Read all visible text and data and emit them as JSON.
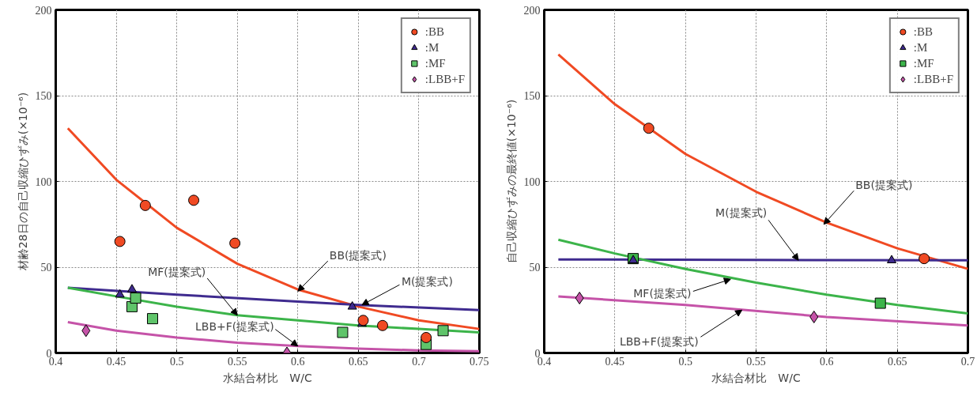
{
  "chart_data": [
    {
      "type": "scatter",
      "xlabel": "水結合材比　W/C",
      "ylabel": "材齢28日の自己収縮ひずみ(×10⁻⁶)",
      "xlim": [
        0.4,
        0.75
      ],
      "ylim": [
        0,
        200
      ],
      "xticks": [
        0.4,
        0.45,
        0.5,
        0.55,
        0.6,
        0.65,
        0.7,
        0.75
      ],
      "yticks": [
        0,
        50,
        100,
        150,
        200
      ],
      "grid": true,
      "legend": "top right",
      "series": [
        {
          "name": ":BB",
          "color": "#f04a23",
          "marker": "circle",
          "x": [
            0.453,
            0.474,
            0.514,
            0.548,
            0.654,
            0.67,
            0.706
          ],
          "values": [
            65,
            86,
            89,
            64,
            19,
            16,
            9
          ]
        },
        {
          "name": ":M",
          "color": "#3f2b8f",
          "marker": "triangle",
          "x": [
            0.453,
            0.463,
            0.645,
            0.653
          ],
          "values": [
            34,
            37,
            27,
            17
          ]
        },
        {
          "name": ":MF",
          "color": "#5fc46a",
          "marker": "square",
          "x": [
            0.463,
            0.466,
            0.48,
            0.637,
            0.706,
            0.72
          ],
          "values": [
            27,
            32,
            20,
            12,
            5,
            13
          ]
        },
        {
          "name": ":LBB+F",
          "color": "#c553a8",
          "marker": "diamond",
          "x": [
            0.425,
            0.591
          ],
          "values": [
            13,
            0
          ]
        },
        {
          "type": "line",
          "color": "#f04a23",
          "marker": "none",
          "x": [
            0.41,
            0.45,
            0.5,
            0.55,
            0.6,
            0.65,
            0.7,
            0.75
          ],
          "values": [
            131,
            101,
            73,
            52,
            37,
            27,
            19,
            14
          ]
        },
        {
          "type": "line",
          "color": "#3f2b8f",
          "marker": "none",
          "x": [
            0.41,
            0.5,
            0.6,
            0.65,
            0.75
          ],
          "values": [
            38,
            34,
            30,
            28,
            25
          ]
        },
        {
          "type": "line",
          "color": "#3cb44a",
          "marker": "none",
          "x": [
            0.41,
            0.45,
            0.5,
            0.55,
            0.6,
            0.65,
            0.7,
            0.75
          ],
          "values": [
            38,
            33,
            27,
            22,
            19,
            16,
            14,
            12
          ]
        },
        {
          "type": "line",
          "color": "#c553a8",
          "marker": "none",
          "x": [
            0.41,
            0.45,
            0.5,
            0.55,
            0.6,
            0.65,
            0.7,
            0.75
          ],
          "values": [
            18,
            13,
            9,
            6,
            4,
            2.5,
            1.5,
            1
          ]
        }
      ],
      "annotations": [
        {
          "text": "BB(提案式)",
          "x": 0.6,
          "y": 36
        },
        {
          "text": "M(提案式)",
          "x": 0.653,
          "y": 28
        },
        {
          "text": "MF(提案式)",
          "x": 0.55,
          "y": 22
        },
        {
          "text": "LBB+F(提案式)",
          "x": 0.6,
          "y": 4
        }
      ]
    },
    {
      "type": "scatter",
      "xlabel": "水結合材比　W/C",
      "ylabel": "自己収縮ひずみの最終値(×10⁻⁶)",
      "xlim": [
        0.4,
        0.7
      ],
      "ylim": [
        0,
        200
      ],
      "xticks": [
        0.4,
        0.45,
        0.5,
        0.55,
        0.6,
        0.65,
        0.7
      ],
      "yticks": [
        0,
        50,
        100,
        150,
        200
      ],
      "grid": true,
      "legend": "top right",
      "series": [
        {
          "name": ":BB",
          "color": "#f04a23",
          "marker": "circle",
          "x": [
            0.474,
            0.669
          ],
          "values": [
            131,
            55
          ]
        },
        {
          "name": ":M",
          "color": "#3f2b8f",
          "marker": "triangle",
          "x": [
            0.463,
            0.646
          ],
          "values": [
            54,
            54
          ]
        },
        {
          "name": ":MF",
          "color": "#3cb44a",
          "marker": "square",
          "x": [
            0.463,
            0.638
          ],
          "values": [
            55,
            29
          ]
        },
        {
          "name": ":LBB+F",
          "color": "#c553a8",
          "marker": "diamond",
          "x": [
            0.425,
            0.591
          ],
          "values": [
            32,
            21
          ]
        },
        {
          "type": "line",
          "color": "#f04a23",
          "marker": "none",
          "x": [
            0.41,
            0.45,
            0.5,
            0.55,
            0.6,
            0.65,
            0.7
          ],
          "values": [
            174,
            145,
            116,
            94,
            76,
            61,
            49
          ]
        },
        {
          "type": "line",
          "color": "#3f2b8f",
          "marker": "none",
          "x": [
            0.41,
            0.7
          ],
          "values": [
            54.5,
            54
          ]
        },
        {
          "type": "line",
          "color": "#3cb44a",
          "marker": "none",
          "x": [
            0.41,
            0.45,
            0.5,
            0.55,
            0.6,
            0.65,
            0.7
          ],
          "values": [
            66,
            58,
            49,
            41,
            34,
            28,
            23
          ]
        },
        {
          "type": "line",
          "color": "#c553a8",
          "marker": "none",
          "x": [
            0.41,
            0.5,
            0.6,
            0.7
          ],
          "values": [
            33,
            28,
            21,
            16
          ]
        }
      ],
      "annotations": [
        {
          "text": "BB(提案式)",
          "x": 0.598,
          "y": 75
        },
        {
          "text": "M(提案式)",
          "x": 0.58,
          "y": 54
        },
        {
          "text": "MF(提案式)",
          "x": 0.532,
          "y": 43
        },
        {
          "text": "LBB+F(提案式)",
          "x": 0.54,
          "y": 25
        }
      ]
    }
  ]
}
